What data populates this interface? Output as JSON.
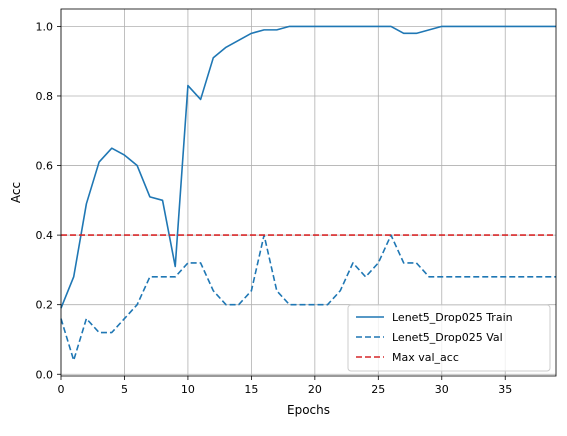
{
  "chart_data": {
    "type": "line",
    "title": "",
    "xlabel": "Epochs",
    "ylabel": "Acc",
    "xlim": [
      0,
      39
    ],
    "ylim": [
      -0.005,
      1.05
    ],
    "xticks": [
      0,
      5,
      10,
      15,
      20,
      25,
      30,
      35
    ],
    "yticks": [
      0.0,
      0.2,
      0.4,
      0.6,
      0.8,
      1.0
    ],
    "xtick_labels": [
      "0",
      "5",
      "10",
      "15",
      "20",
      "25",
      "30",
      "35"
    ],
    "ytick_labels": [
      "0.0",
      "0.2",
      "0.4",
      "0.6",
      "0.8",
      "1.0"
    ],
    "grid": true,
    "legend_position": "lower-right",
    "x": [
      0,
      1,
      2,
      3,
      4,
      5,
      6,
      7,
      8,
      9,
      10,
      11,
      12,
      13,
      14,
      15,
      16,
      17,
      18,
      19,
      20,
      21,
      22,
      23,
      24,
      25,
      26,
      27,
      28,
      29,
      30,
      31,
      32,
      33,
      34,
      35,
      36,
      37,
      38,
      39
    ],
    "series": [
      {
        "name": "Lenet5_Drop025 Train",
        "color": "#1f77b4",
        "style": "solid",
        "values": [
          0.19,
          0.28,
          0.49,
          0.61,
          0.65,
          0.63,
          0.6,
          0.51,
          0.5,
          0.31,
          0.83,
          0.79,
          0.91,
          0.94,
          0.96,
          0.98,
          0.99,
          0.99,
          1.0,
          1.0,
          1.0,
          1.0,
          1.0,
          1.0,
          1.0,
          1.0,
          1.0,
          0.98,
          0.98,
          0.99,
          1.0,
          1.0,
          1.0,
          1.0,
          1.0,
          1.0,
          1.0,
          1.0,
          1.0,
          1.0
        ]
      },
      {
        "name": "Lenet5_Drop025 Val",
        "color": "#1f77b4",
        "style": "dashed",
        "values": [
          0.16,
          0.04,
          0.16,
          0.12,
          0.12,
          0.16,
          0.2,
          0.28,
          0.28,
          0.28,
          0.32,
          0.32,
          0.24,
          0.2,
          0.2,
          0.24,
          0.4,
          0.24,
          0.2,
          0.2,
          0.2,
          0.2,
          0.24,
          0.32,
          0.28,
          0.32,
          0.4,
          0.32,
          0.32,
          0.28,
          0.28,
          0.28,
          0.28,
          0.28,
          0.28,
          0.28,
          0.28,
          0.28,
          0.28,
          0.28
        ]
      },
      {
        "name": "Max val_acc",
        "color": "#d62728",
        "style": "dashed",
        "values": [
          0.4,
          0.4,
          0.4,
          0.4,
          0.4,
          0.4,
          0.4,
          0.4,
          0.4,
          0.4,
          0.4,
          0.4,
          0.4,
          0.4,
          0.4,
          0.4,
          0.4,
          0.4,
          0.4,
          0.4,
          0.4,
          0.4,
          0.4,
          0.4,
          0.4,
          0.4,
          0.4,
          0.4,
          0.4,
          0.4,
          0.4,
          0.4,
          0.4,
          0.4,
          0.4,
          0.4,
          0.4,
          0.4,
          0.4,
          0.4
        ]
      }
    ]
  }
}
